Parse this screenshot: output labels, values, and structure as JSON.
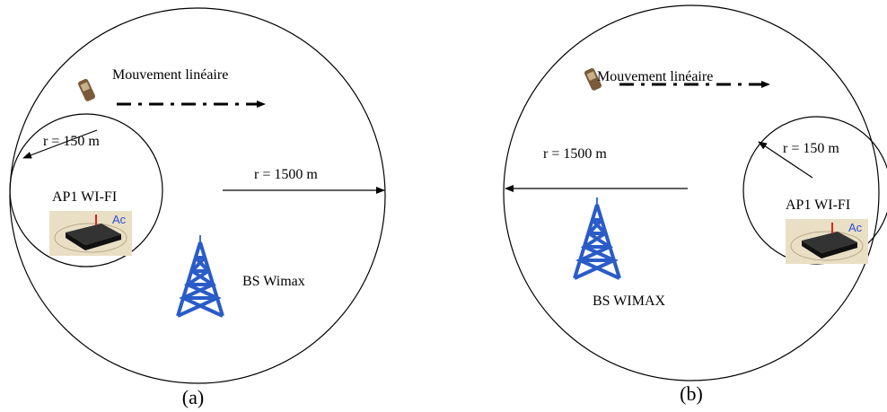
{
  "panels": [
    {
      "movement": "Mouvement linéaire",
      "small_radius": "r = 150 m",
      "big_radius": "r = 1500 m",
      "access_point": "AP1 WI-FI",
      "base_station": "BS Wimax",
      "caption": "(a)"
    },
    {
      "movement": "Mouvement linéaire",
      "small_radius": "r = 150 m",
      "big_radius": "r = 1500 m",
      "access_point": "AP1 WI-FI",
      "base_station": "BS WIMAX",
      "caption": "(b)"
    }
  ]
}
